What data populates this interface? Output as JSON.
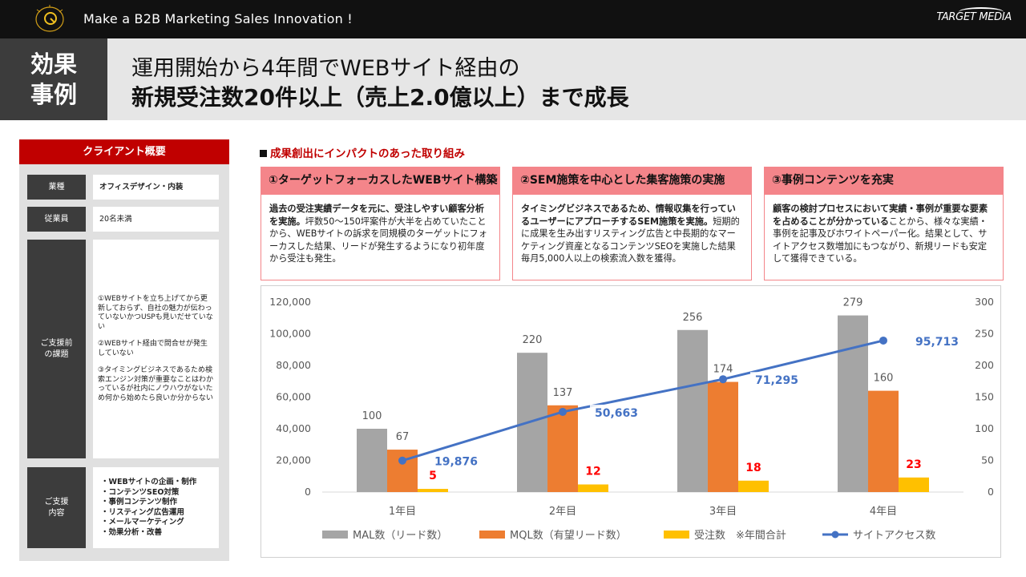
{
  "topbar": {
    "tagline": "Make a B2B Marketing Sales Innovation !",
    "brand": "TARGET MEDIA"
  },
  "header": {
    "badge_line1": "効果",
    "badge_line2": "事例",
    "headline1": "運用開始から4年間でWEBサイト経由の",
    "headline2": "新規受注数20件以上（売上2.0億以上）まで成長"
  },
  "client": {
    "title": "クライアント概要",
    "industry_label": "業種",
    "industry_value": "オフィスデザイン・内装",
    "employees_label": "従業員",
    "employees_value": "20名未満",
    "issues_label_1": "ご支援前",
    "issues_label_2": "の課題",
    "issues": [
      "①WEBサイトを立ち上げてから更新しておらず、自社の魅力が伝わっていないかつUSPも見いだせていない",
      "②WEBサイト経由で問合せが発生していない",
      "③タイミングビジネスであるため検索エンジン対策が重要なことはわかっているが社内にノウハウがないため何から始めたら良いか分からない"
    ],
    "support_label_1": "ご支援",
    "support_label_2": "内容",
    "support_items": [
      "・WEBサイトの企画・制作",
      "・コンテンツSEO対策",
      "・事例コンテンツ制作",
      "・リスティング広告運用",
      "・メールマーケティング",
      "・効果分析・改善"
    ]
  },
  "section_title": "成果創出にインパクトのあった取り組み",
  "initiatives": [
    {
      "title": "①ターゲットフォーカスしたWEBサイト構築",
      "body_bold": "過去の受注実績データを元に、受注しやすい顧客分析を実施。",
      "body": "坪数50～150坪案件が大半を占めていたことから、WEBサイトの訴求を同規模のターゲットにフォーカスした結果、リードが発生するようになり初年度から受注も発生。"
    },
    {
      "title": "②SEM施策を中心とした集客施策の実施",
      "body_bold": "タイミングビジネスであるため、情報収集を行っているユーザーにアプローチするSEM施策を実施。",
      "body": "短期的に成果を生み出すリスティング広告と中長期的なマーケティング資産となるコンテンツSEOを実施した結果毎月5,000人以上の検索流入数を獲得。"
    },
    {
      "title": "③事例コンテンツを充実",
      "body_bold": "顧客の検討プロセスにおいて実績・事例が重要な要素を占めることが分かっている",
      "body": "ことから、様々な実績・事例を記事及びホワイトペーパー化。結果として、サイトアクセス数増加にもつながり、新規リードも安定して獲得できている。"
    }
  ],
  "colors": {
    "mal": "#a5a5a5",
    "mql": "#ed7d31",
    "orders": "#ffc000",
    "access": "#4472c4",
    "orders_label": "#ff0000",
    "accent_red": "#c00000",
    "card_pink": "#f4858a"
  },
  "chart_data": {
    "type": "bar",
    "categories": [
      "1年目",
      "2年目",
      "3年目",
      "4年目"
    ],
    "series": [
      {
        "name": "MAL数（リード数）",
        "type": "bar",
        "axis": "right",
        "values": [
          100,
          220,
          256,
          279
        ]
      },
      {
        "name": "MQL数（有望リード数）",
        "type": "bar",
        "axis": "right",
        "values": [
          67,
          137,
          174,
          160
        ]
      },
      {
        "name": "受注数　※年間合計",
        "type": "bar",
        "axis": "right",
        "values": [
          5,
          12,
          18,
          23
        ]
      },
      {
        "name": "サイトアクセス数",
        "type": "line",
        "axis": "left",
        "values": [
          19876,
          50663,
          71295,
          95713
        ]
      }
    ],
    "y_left": {
      "min": 0,
      "max": 120000,
      "ticks": [
        "0",
        "20,000",
        "40,000",
        "60,000",
        "80,000",
        "100,000",
        "120,000"
      ]
    },
    "y_right": {
      "min": 0,
      "max": 300,
      "ticks": [
        "0",
        "50",
        "100",
        "150",
        "200",
        "250",
        "300"
      ]
    },
    "value_labels": {
      "mal": [
        "100",
        "220",
        "256",
        "279"
      ],
      "mql": [
        "67",
        "137",
        "174",
        "160"
      ],
      "orders": [
        "5",
        "12",
        "18",
        "23"
      ],
      "access": [
        "19,876",
        "50,663",
        "71,295",
        "95,713"
      ]
    },
    "legend_position": "bottom",
    "grid": false
  }
}
